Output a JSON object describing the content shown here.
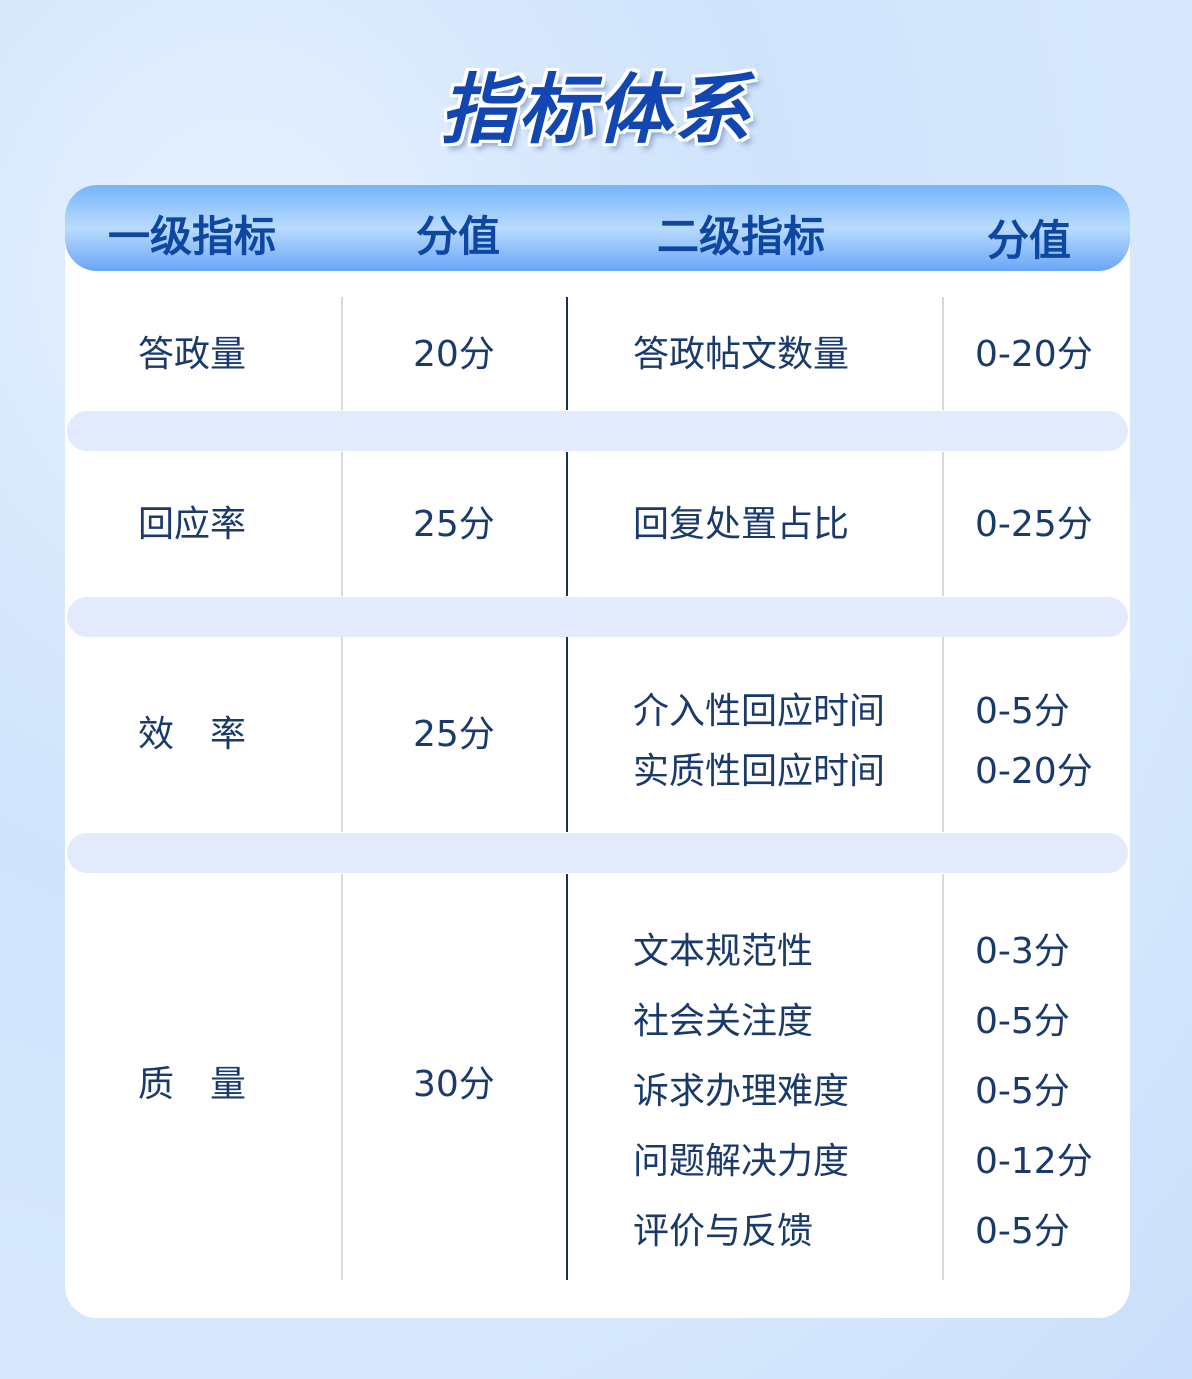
{
  "title": "指标体系",
  "headers": [
    "一级指标",
    "分值",
    "二级指标",
    "分值"
  ],
  "rows": [
    {
      "primary": "答政量",
      "score": "20分",
      "secondary": [
        {
          "name": "答政帖文数量",
          "range": "0-20分"
        }
      ]
    },
    {
      "primary": "回应率",
      "score": "25分",
      "secondary": [
        {
          "name": "回复处置占比",
          "range": "0-25分"
        }
      ]
    },
    {
      "primary": "效　率",
      "score": "25分",
      "secondary": [
        {
          "name": "介入性回应时间",
          "range": "0-5分"
        },
        {
          "name": "实质性回应时间",
          "range": "0-20分"
        }
      ]
    },
    {
      "primary": "质　量",
      "score": "30分",
      "secondary": [
        {
          "name": "文本规范性",
          "range": "0-3分"
        },
        {
          "name": "社会关注度",
          "range": "0-5分"
        },
        {
          "name": "诉求办理难度",
          "range": "0-5分"
        },
        {
          "name": "问题解决力度",
          "range": "0-12分"
        },
        {
          "name": "评价与反馈",
          "range": "0-5分"
        }
      ]
    }
  ],
  "colors": {
    "header_text": "#0d47a1",
    "body_text": "#1a3a6b",
    "band": "#e3eafc"
  }
}
